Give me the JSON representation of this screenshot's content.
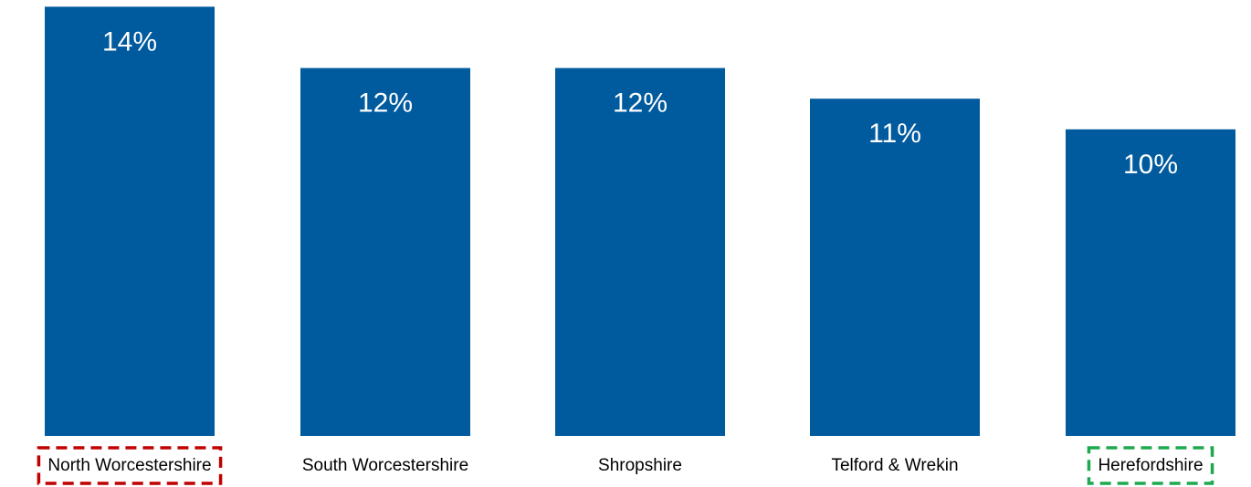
{
  "chart_data": {
    "type": "bar",
    "categories": [
      "North Worcestershire",
      "South Worcestershire",
      "Shropshire",
      "Telford & Wrekin",
      "Herefordshire"
    ],
    "values": [
      14,
      12,
      12,
      11,
      10
    ],
    "value_labels": [
      "14%",
      "12%",
      "12%",
      "11%",
      "10%"
    ],
    "ylim": [
      0,
      14.1
    ],
    "grid": false,
    "bar_color": "#005a9e",
    "highlights": [
      {
        "category": "North Worcestershire",
        "style": "dashed-box",
        "color": "#c00000"
      },
      {
        "category": "Herefordshire",
        "style": "dashed-box",
        "color": "#1ea84f"
      }
    ]
  }
}
